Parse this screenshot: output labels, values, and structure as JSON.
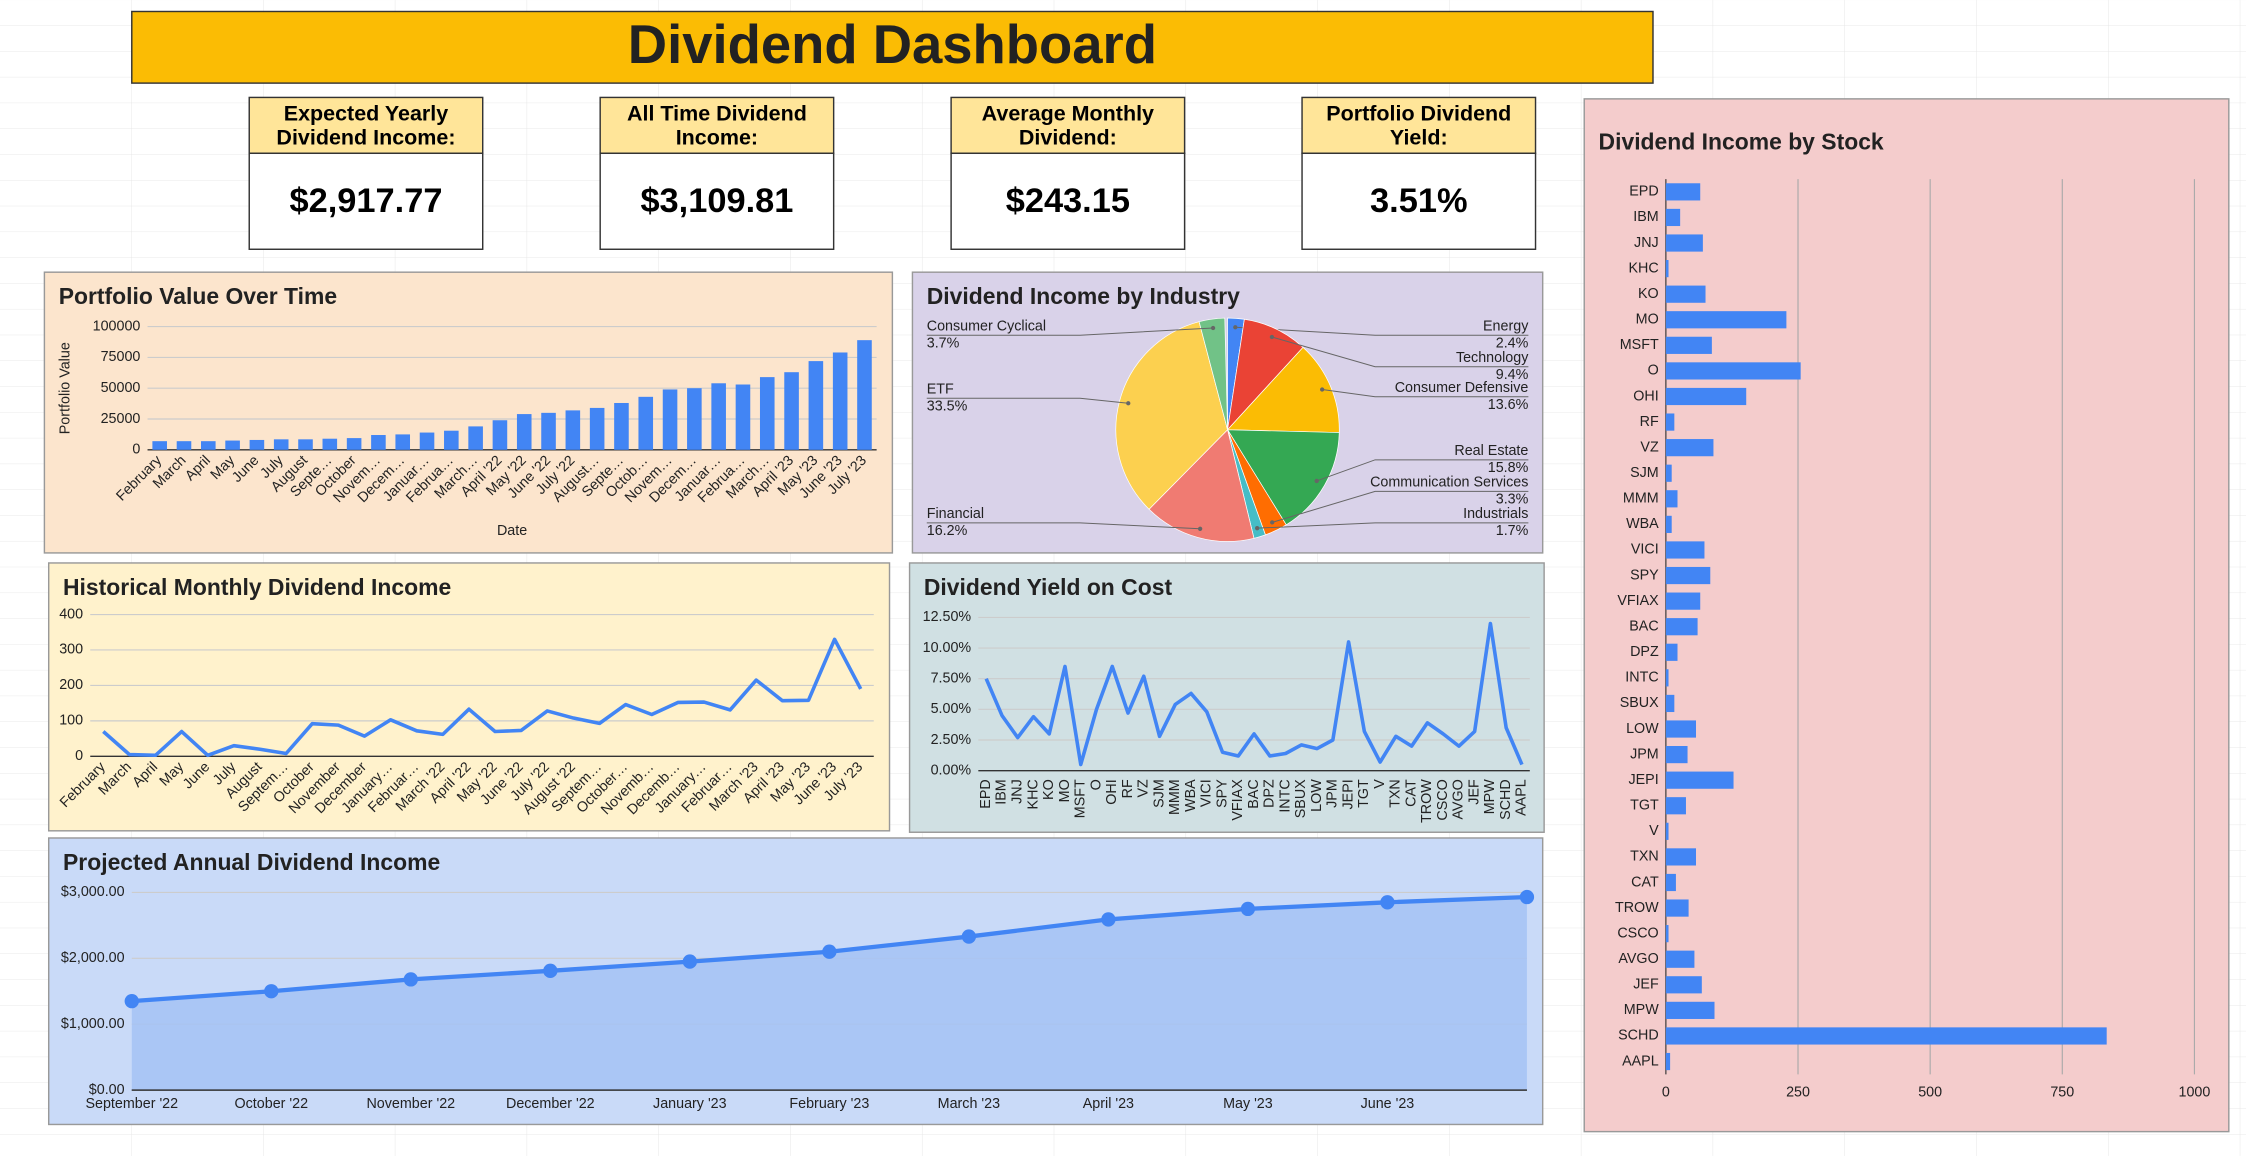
{
  "header": {
    "title": "Dividend Dashboard"
  },
  "cards": [
    {
      "label": "Expected Yearly Dividend Income:",
      "value": "$2,917.77"
    },
    {
      "label": "All Time Dividend Income:",
      "value": "$3,109.81"
    },
    {
      "label": "Average Monthly Dividend:",
      "value": "$243.15"
    },
    {
      "label": "Portfolio Dividend Yield:",
      "value": "3.51%"
    }
  ],
  "chart_data": [
    {
      "type": "bar",
      "title": "Portfolio Value Over Time",
      "x_label": "Date",
      "y_label": "Portfolio Value",
      "color": "#4285f4",
      "grid": true,
      "categories": [
        "February",
        "March",
        "April",
        "May",
        "June",
        "July",
        "August",
        "Septe…",
        "October",
        "Novem…",
        "Decem…",
        "Januar…",
        "Februa…",
        "March…",
        "April '22",
        "May '22",
        "June '22",
        "July '22",
        "August…",
        "Septe…",
        "Octob…",
        "Novem…",
        "Decem…",
        "Januar…",
        "Februa…",
        "March…",
        "April '23",
        "May '23",
        "June '23",
        "July '23"
      ],
      "values": [
        7000,
        7000,
        7000,
        7500,
        8000,
        8500,
        8500,
        9000,
        9500,
        12000,
        12500,
        14000,
        15500,
        19000,
        24000,
        29000,
        30000,
        32000,
        34000,
        38000,
        43000,
        49000,
        50000,
        54000,
        53000,
        59000,
        63000,
        72000,
        79000,
        89000
      ],
      "ylim": [
        0,
        100000
      ],
      "yticks": [
        0,
        25000,
        50000,
        75000,
        100000
      ]
    },
    {
      "type": "pie",
      "title": "Dividend Income by Industry",
      "categories": [
        "Energy",
        "Technology",
        "Consumer Defensive",
        "Real Estate",
        "Communication Services",
        "Industrials",
        "Financial",
        "ETF",
        "Consumer Cyclical"
      ],
      "values": [
        2.4,
        9.4,
        13.6,
        15.8,
        3.3,
        1.7,
        16.2,
        33.5,
        3.7
      ],
      "value_labels": [
        "2.4%",
        "9.4%",
        "13.6%",
        "15.8%",
        "3.3%",
        "1.7%",
        "16.2%",
        "33.5%",
        "3.7%"
      ],
      "colors": [
        "#4285f4",
        "#ea4335",
        "#fbbc04",
        "#34a853",
        "#ff6d01",
        "#46bdc6",
        "#f07b72",
        "#fcd04f",
        "#71c287"
      ]
    },
    {
      "type": "line",
      "title": "Historical Monthly Dividend Income",
      "color": "#4285f4",
      "grid": true,
      "categories": [
        "February",
        "March",
        "April",
        "May",
        "June",
        "July",
        "August",
        "Septem…",
        "October",
        "November",
        "December",
        "January…",
        "Februar…",
        "March '22",
        "April '22",
        "May '22",
        "June '22",
        "July '22",
        "August '22",
        "Septem…",
        "October…",
        "Novemb…",
        "Decemb…",
        "January…",
        "Februar…",
        "March '23",
        "April '23",
        "May '23",
        "June '23",
        "July '23"
      ],
      "values": [
        70,
        5,
        3,
        70,
        3,
        30,
        20,
        8,
        92,
        88,
        57,
        103,
        72,
        62,
        133,
        70,
        73,
        128,
        108,
        93,
        146,
        118,
        152,
        153,
        131,
        215,
        157,
        158,
        330,
        190
      ],
      "ylim": [
        0,
        400
      ],
      "yticks": [
        0,
        100,
        200,
        300,
        400
      ]
    },
    {
      "type": "line",
      "title": "Dividend Yield on Cost",
      "color": "#4285f4",
      "grid": true,
      "categories": [
        "EPD",
        "IBM",
        "JNJ",
        "KHC",
        "KO",
        "MO",
        "MSFT",
        "O",
        "OHI",
        "RF",
        "VZ",
        "SJM",
        "MMM",
        "WBA",
        "VICI",
        "SPY",
        "VFIAX",
        "BAC",
        "DPZ",
        "INTC",
        "SBUX",
        "LOW",
        "JPM",
        "JEPI",
        "TGT",
        "V",
        "TXN",
        "CAT",
        "TROW",
        "CSCO",
        "AVGO",
        "JEF",
        "MPW",
        "SCHD",
        "AAPL"
      ],
      "values": [
        7.5,
        4.5,
        2.7,
        4.4,
        3.0,
        8.5,
        0.5,
        5.0,
        8.5,
        4.7,
        7.7,
        2.8,
        5.4,
        6.3,
        4.8,
        1.5,
        1.2,
        3.0,
        1.2,
        1.4,
        2.1,
        1.8,
        2.5,
        10.5,
        3.2,
        0.7,
        2.8,
        2.0,
        3.9,
        3.0,
        2.0,
        3.2,
        12.0,
        3.5,
        0.5
      ],
      "ylim": [
        0,
        12.5
      ],
      "yticks": [
        {
          "value": 0,
          "label": "0.00%"
        },
        {
          "value": 2.5,
          "label": "2.50%"
        },
        {
          "value": 5,
          "label": "5.00%"
        },
        {
          "value": 7.5,
          "label": "7.50%"
        },
        {
          "value": 10,
          "label": "10.00%"
        },
        {
          "value": 12.5,
          "label": "12.50%"
        }
      ]
    },
    {
      "type": "area",
      "title": "Projected Annual Dividend Income",
      "color": "#4285f4",
      "grid": true,
      "categories": [
        "September '22",
        "October '22",
        "November '22",
        "December '22",
        "January '23",
        "February '23",
        "March '23",
        "April '23",
        "May '23",
        "June '23",
        null
      ],
      "values": [
        1350,
        1500,
        1680,
        1810,
        1950,
        2100,
        2330,
        2590,
        2750,
        2850,
        2930
      ],
      "ylim": [
        0,
        3000
      ],
      "yticks": [
        {
          "value": 0,
          "label": "$0.00"
        },
        {
          "value": 1000,
          "label": "$1,000.00"
        },
        {
          "value": 2000,
          "label": "$2,000.00"
        },
        {
          "value": 3000,
          "label": "$3,000.00"
        }
      ]
    },
    {
      "type": "bar",
      "horizontal": true,
      "title": "Dividend Income by Stock",
      "color": "#4285f4",
      "grid": true,
      "categories": [
        "EPD",
        "IBM",
        "JNJ",
        "KHC",
        "KO",
        "MO",
        "MSFT",
        "O",
        "OHI",
        "RF",
        "VZ",
        "SJM",
        "MMM",
        "WBA",
        "VICI",
        "SPY",
        "VFIAX",
        "BAC",
        "DPZ",
        "INTC",
        "SBUX",
        "LOW",
        "JPM",
        "JEPI",
        "TGT",
        "V",
        "TXN",
        "CAT",
        "TROW",
        "CSCO",
        "AVGO",
        "JEF",
        "MPW",
        "SCHD",
        "AAPL"
      ],
      "values": [
        65,
        27,
        70,
        5,
        75,
        228,
        87,
        255,
        152,
        16,
        90,
        11,
        22,
        11,
        73,
        84,
        65,
        60,
        22,
        5,
        16,
        57,
        41,
        128,
        38,
        5,
        57,
        19,
        43,
        5,
        54,
        68,
        92,
        834,
        8
      ],
      "xlim": [
        0,
        1000
      ],
      "xticks": [
        0,
        250,
        500,
        750,
        1000
      ]
    }
  ]
}
